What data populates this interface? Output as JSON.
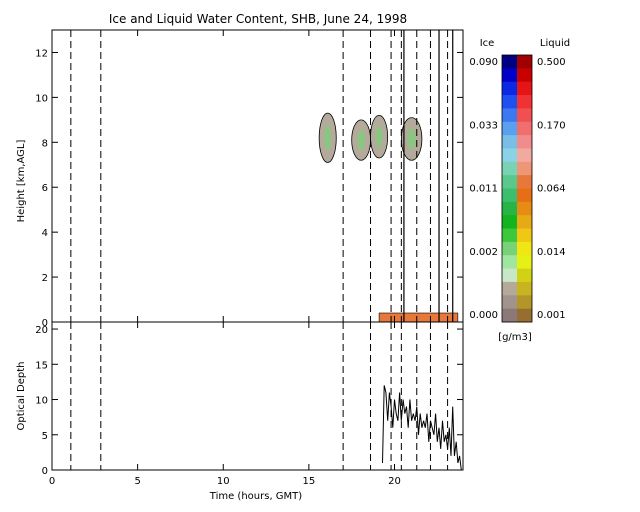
{
  "chart_data": [
    {
      "type": "heatmap",
      "title": "Ice and Liquid Water Content, SHB, June 24, 1998",
      "ylabel": "Height [km,AGL]",
      "xlim": [
        0,
        24
      ],
      "ylim": [
        0,
        13
      ],
      "y_ticks": [
        "0",
        "2",
        "4",
        "6",
        "8",
        "10",
        "12"
      ],
      "vlines": [
        1.1,
        2.85,
        17.0,
        18.6,
        19.8,
        20.4,
        21.3,
        22.1,
        23.1
      ],
      "solid_vlines": [
        20.55,
        22.6,
        23.4
      ],
      "cloud_patches": [
        {
          "x": [
            15.6,
            16.6
          ],
          "y": [
            7.1,
            9.3
          ],
          "kind": "ice"
        },
        {
          "x": [
            17.5,
            18.6
          ],
          "y": [
            7.2,
            9.0
          ],
          "kind": "ice"
        },
        {
          "x": [
            18.6,
            19.6
          ],
          "y": [
            7.3,
            9.2
          ],
          "kind": "ice"
        },
        {
          "x": [
            20.4,
            21.6
          ],
          "y": [
            7.2,
            9.1
          ],
          "kind": "ice"
        },
        {
          "x": [
            19.1,
            23.7
          ],
          "y": [
            0.0,
            0.4
          ],
          "kind": "liquid"
        }
      ],
      "colorbar": {
        "ice_label": "Ice",
        "liquid_label": "Liquid",
        "units": "[g/m3]",
        "ice_ticks": [
          "0.090",
          "0.033",
          "0.011",
          "0.002",
          "0.000"
        ],
        "liquid_ticks": [
          "0.500",
          "0.170",
          "0.064",
          "0.014",
          "0.001"
        ],
        "ice_colors": [
          "#000080",
          "#0000c8",
          "#0a28e6",
          "#1e50f0",
          "#3c78f0",
          "#5aa0f0",
          "#78bee6",
          "#8cd2e6",
          "#78d2b4",
          "#5ac88c",
          "#3cbe6e",
          "#28b446",
          "#14b41e",
          "#3cc83c",
          "#78d278",
          "#a0e6a0",
          "#c8e6c8",
          "#b4aa9b",
          "#a0948c",
          "#8c7878"
        ],
        "liquid_colors": [
          "#a00000",
          "#c80000",
          "#e61414",
          "#f03232",
          "#f05050",
          "#f06e6e",
          "#f08c8c",
          "#f0aaa0",
          "#f09678",
          "#e6783c",
          "#e66e14",
          "#e68c14",
          "#e6aa14",
          "#f0c814",
          "#f0e614",
          "#e6f014",
          "#d2d214",
          "#c8b41e",
          "#b49628",
          "#966e32"
        ]
      }
    },
    {
      "type": "line",
      "xlabel": "Time (hours, GMT)",
      "ylabel": "Optical Depth",
      "xlim": [
        0,
        24
      ],
      "ylim": [
        0,
        21
      ],
      "x_ticks": [
        "0",
        "5",
        "10",
        "15",
        "20"
      ],
      "y_ticks": [
        "0",
        "5",
        "10",
        "15",
        "20"
      ],
      "x": [
        19.3,
        19.4,
        19.5,
        19.6,
        19.7,
        19.8,
        19.9,
        20.0,
        20.1,
        20.2,
        20.3,
        20.4,
        20.5,
        20.6,
        20.7,
        20.8,
        20.9,
        21.0,
        21.1,
        21.2,
        21.3,
        21.4,
        21.5,
        21.6,
        21.7,
        21.8,
        21.9,
        22.0,
        22.1,
        22.2,
        22.3,
        22.4,
        22.5,
        22.6,
        22.7,
        22.8,
        22.9,
        23.0,
        23.1,
        23.2,
        23.3,
        23.4,
        23.5,
        23.6,
        23.7,
        23.8,
        23.9
      ],
      "values": [
        1,
        12,
        11,
        7,
        11,
        9,
        6,
        10,
        8,
        7,
        11,
        7,
        10,
        8,
        9,
        6,
        10,
        7,
        8,
        7,
        9,
        5,
        8,
        6,
        7,
        6,
        8,
        4,
        7,
        6,
        5,
        8,
        4,
        6,
        3,
        7,
        4,
        5,
        3,
        6,
        2,
        9,
        2,
        4,
        1,
        2,
        0
      ]
    }
  ]
}
